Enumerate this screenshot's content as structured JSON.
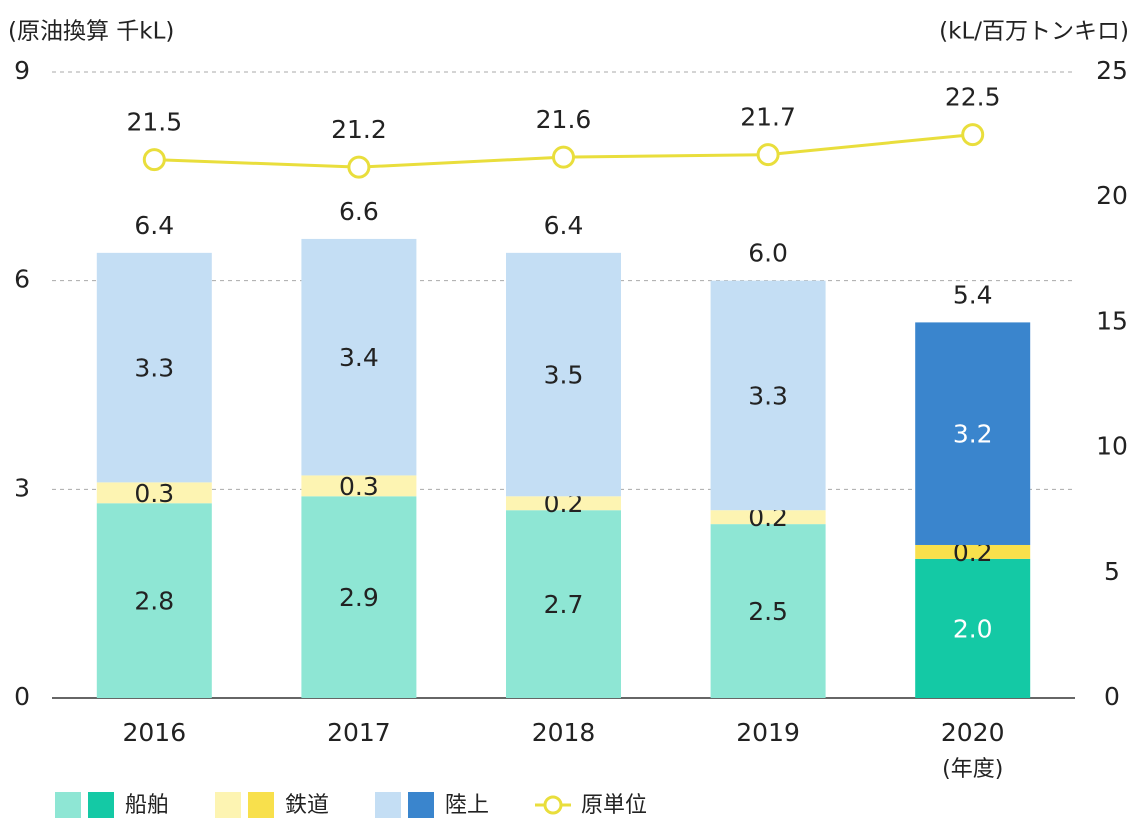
{
  "chart_data": {
    "type": "stacked_bar_line",
    "ylabel": "(原油換算 千kL)",
    "y2label": "(kL/百万トンキロ)",
    "xlabel": "(年度)",
    "categories": [
      "2016",
      "2017",
      "2018",
      "2019",
      "2020"
    ],
    "series": [
      {
        "name": "船舶",
        "colors": [
          "#8ee6d4",
          "#8ee6d4",
          "#8ee6d4",
          "#8ee6d4",
          "#14c9a5"
        ],
        "values": [
          2.8,
          2.9,
          2.7,
          2.5,
          2.0
        ],
        "value_labels": [
          "2.8",
          "2.9",
          "2.7",
          "2.5",
          "2.0"
        ]
      },
      {
        "name": "鉄道",
        "colors": [
          "#fdf4b2",
          "#fdf4b2",
          "#fdf4b2",
          "#fdf4b2",
          "#f8e04c"
        ],
        "values": [
          0.3,
          0.3,
          0.2,
          0.2,
          0.2
        ],
        "value_labels": [
          "0.3",
          "0.3",
          "0.2",
          "0.2",
          "0.2"
        ]
      },
      {
        "name": "陸上",
        "colors": [
          "#c4def4",
          "#c4def4",
          "#c4def4",
          "#c4def4",
          "#3a85cd"
        ],
        "values": [
          3.3,
          3.4,
          3.5,
          3.3,
          3.2
        ],
        "value_labels": [
          "3.3",
          "3.4",
          "3.5",
          "3.3",
          "3.2"
        ]
      },
      {
        "name": "原単位",
        "type": "line",
        "axis": "y2",
        "color": "#e9de3c",
        "values": [
          21.5,
          21.2,
          21.6,
          21.7,
          22.5
        ]
      }
    ],
    "totals": [
      6.4,
      6.6,
      6.4,
      6.0,
      5.4
    ],
    "total_labels": [
      "6.4",
      "6.6",
      "6.4",
      "6.0",
      "5.4"
    ],
    "ylim": [
      0,
      9
    ],
    "yticks": [
      0,
      3,
      6,
      9
    ],
    "y2lim": [
      0,
      25
    ],
    "y2ticks": [
      0,
      5,
      10,
      15,
      20,
      25
    ],
    "grid": true,
    "legend": "bottom"
  }
}
